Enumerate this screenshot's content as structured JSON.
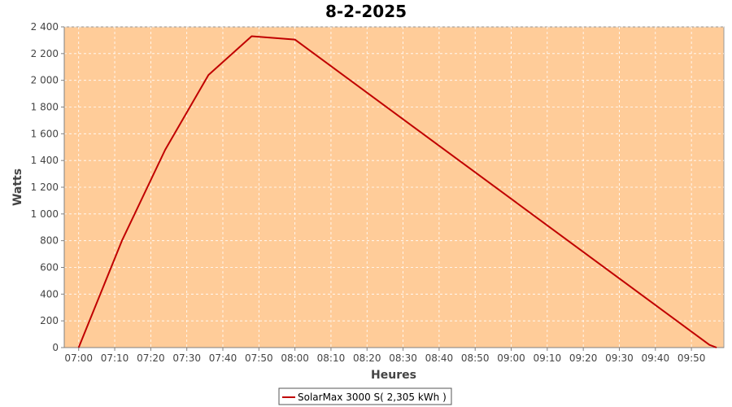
{
  "chart_data": {
    "type": "line",
    "title": "8-2-2025",
    "xlabel": "Heures",
    "ylabel": "Watts",
    "x_ticks": [
      "07:00",
      "07:10",
      "07:20",
      "07:30",
      "07:40",
      "07:50",
      "08:00",
      "08:10",
      "08:20",
      "08:30",
      "08:40",
      "08:50",
      "09:00",
      "09:10",
      "09:20",
      "09:30",
      "09:40",
      "09:50"
    ],
    "y_ticks": [
      "0",
      "200",
      "400",
      "600",
      "800",
      "1 000",
      "1 200",
      "1 400",
      "1 600",
      "1 800",
      "2 000",
      "2 200",
      "2 400"
    ],
    "xlim": [
      "06:56",
      "09:59"
    ],
    "ylim": [
      0,
      2400
    ],
    "grid": true,
    "legend_position": "bottom-center",
    "series": [
      {
        "name": "SolarMax 3000 S( 2,305 kWh )",
        "color": "#c00000",
        "x": [
          "07:00",
          "07:12",
          "07:24",
          "07:36",
          "07:48",
          "08:00",
          "09:55",
          "09:57"
        ],
        "y": [
          0,
          800,
          1480,
          2040,
          2330,
          2305,
          20,
          0
        ]
      }
    ]
  },
  "colors": {
    "plot_background": "#ffcc99",
    "series": "#c00000",
    "grid": "#ffffff"
  }
}
